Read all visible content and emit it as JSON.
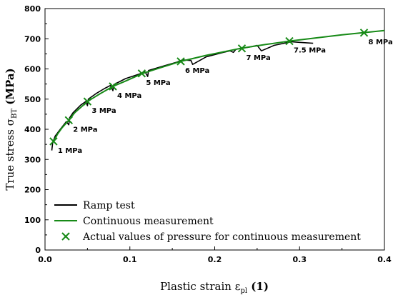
{
  "chart_data": {
    "type": "line",
    "xlim": [
      0.0,
      0.4
    ],
    "ylim": [
      0,
      800
    ],
    "xticks": [
      0.0,
      0.1,
      0.2,
      0.3,
      0.4
    ],
    "xtick_labels": [
      "0.0",
      "0.1",
      "0.2",
      "0.3",
      "0.4"
    ],
    "yticks": [
      0,
      100,
      200,
      300,
      400,
      500,
      600,
      700,
      800
    ],
    "ytick_labels": [
      "0",
      "100",
      "200",
      "300",
      "400",
      "500",
      "600",
      "700",
      "800"
    ],
    "xlabel": {
      "main": "Plastic strain ε",
      "sub": "pl",
      "suffix": " (1)"
    },
    "ylabel": {
      "main": "True stress σ",
      "sub": "BT",
      "suffix": " (MPa)"
    },
    "grid": false,
    "legend_position": "bottom-left",
    "series": [
      {
        "name": "Ramp test",
        "color": "#000000",
        "x": [
          0.008,
          0.009,
          0.012,
          0.018,
          0.025,
          0.028,
          0.029,
          0.033,
          0.042,
          0.048,
          0.05,
          0.051,
          0.06,
          0.07,
          0.077,
          0.08,
          0.081,
          0.095,
          0.11,
          0.118,
          0.121,
          0.122,
          0.14,
          0.155,
          0.16,
          0.162,
          0.172,
          0.174,
          0.19,
          0.21,
          0.218,
          0.222,
          0.225,
          0.24,
          0.25,
          0.255,
          0.27,
          0.29,
          0.3,
          0.316
        ],
        "y": [
          330,
          355,
          378,
          400,
          425,
          415,
          438,
          455,
          480,
          492,
          478,
          500,
          518,
          535,
          545,
          528,
          548,
          568,
          582,
          590,
          575,
          595,
          610,
          622,
          628,
          630,
          628,
          615,
          640,
          655,
          660,
          655,
          665,
          672,
          678,
          660,
          678,
          690,
          688,
          685
        ]
      },
      {
        "name": "Continuous measurement",
        "color": "#178a17",
        "x": [
          0.01,
          0.015,
          0.02,
          0.028,
          0.035,
          0.05,
          0.065,
          0.08,
          0.095,
          0.115,
          0.135,
          0.16,
          0.19,
          0.23,
          0.26,
          0.29,
          0.32,
          0.35,
          0.375,
          0.4
        ],
        "y": [
          360,
          385,
          405,
          430,
          455,
          492,
          518,
          542,
          560,
          585,
          603,
          625,
          645,
          668,
          681,
          693,
          703,
          713,
          720,
          727
        ]
      }
    ],
    "markers": {
      "name": "Actual values of pressure for continuous measurement",
      "color": "#178a17",
      "symbol": "x",
      "points": [
        {
          "x": 0.01,
          "y": 360,
          "label": "1 MPa"
        },
        {
          "x": 0.028,
          "y": 430,
          "label": "2 MPa"
        },
        {
          "x": 0.05,
          "y": 492,
          "label": "3 MPa"
        },
        {
          "x": 0.08,
          "y": 542,
          "label": "4 MPa"
        },
        {
          "x": 0.114,
          "y": 585,
          "label": "5 MPa"
        },
        {
          "x": 0.16,
          "y": 625,
          "label": "6 MPa"
        },
        {
          "x": 0.232,
          "y": 668,
          "label": "7 MPa"
        },
        {
          "x": 0.288,
          "y": 692,
          "label": "7.5 MPa"
        },
        {
          "x": 0.376,
          "y": 720,
          "label": "8 MPa"
        }
      ]
    }
  }
}
